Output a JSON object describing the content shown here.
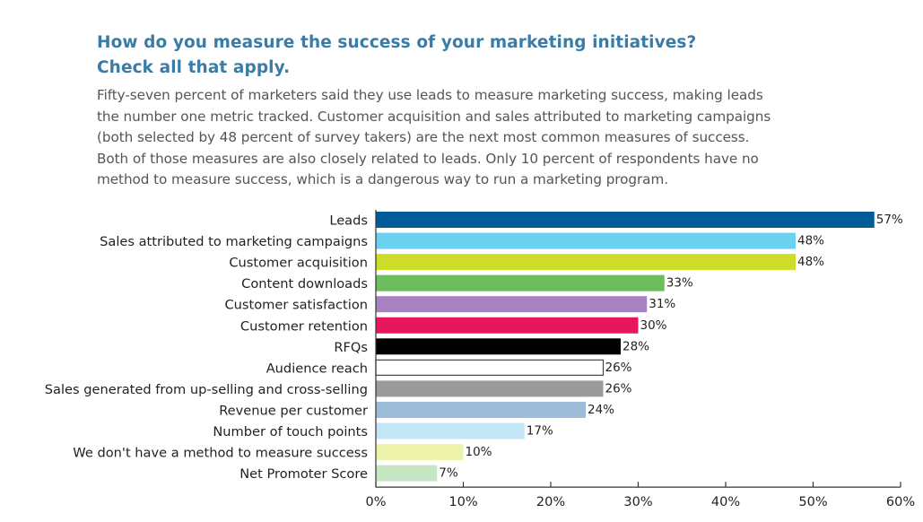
{
  "header": {
    "title_line1": "How do you measure the success of your marketing initiatives?",
    "title_line2": "Check all that apply."
  },
  "description": {
    "lines": [
      "Fifty-seven percent of marketers said they use leads to measure marketing success, making leads",
      "the number one metric tracked. Customer acquisition and sales attributed to marketing campaigns",
      "(both selected by 48 percent of survey takers) are the next most common measures of success.",
      "Both of those measures are also closely related to leads. Only 10 percent of respondents have no",
      "method to measure success, which is a dangerous way to run a marketing program."
    ]
  },
  "chart_data": {
    "type": "bar",
    "orientation": "horizontal",
    "title": "",
    "xlabel": "",
    "ylabel": "",
    "xlim": [
      0,
      60
    ],
    "x_ticks": [
      "0%",
      "10%",
      "20%",
      "30%",
      "40%",
      "50%",
      "60%"
    ],
    "grid": false,
    "categories": [
      "Leads",
      "Sales attributed to marketing campaigns",
      "Customer acquisition",
      "Content downloads",
      "Customer satisfaction",
      "Customer retention",
      "RFQs",
      "Audience reach",
      "Sales generated from up-selling and cross-selling",
      "Revenue per customer",
      "Number of touch points",
      "We don't have a method to measure success",
      "Net Promoter Score"
    ],
    "values": [
      57,
      48,
      48,
      33,
      31,
      30,
      28,
      26,
      26,
      24,
      17,
      10,
      7
    ],
    "value_labels": [
      "57%",
      "48%",
      "48%",
      "33%",
      "31%",
      "30%",
      "28%",
      "26%",
      "26%",
      "24%",
      "17%",
      "10%",
      "7%"
    ],
    "colors": [
      "#005b96",
      "#6ad2f0",
      "#cedc2a",
      "#6cbd5c",
      "#a882c0",
      "#e8175d",
      "#000000",
      "#ffffff",
      "#9b9b9b",
      "#9cbcd8",
      "#c3e6f7",
      "#eef3ab",
      "#c6e6c4"
    ],
    "outline_colors": [
      "",
      "",
      "",
      "",
      "",
      "",
      "",
      "#444444",
      "",
      "",
      "",
      "",
      ""
    ]
  }
}
